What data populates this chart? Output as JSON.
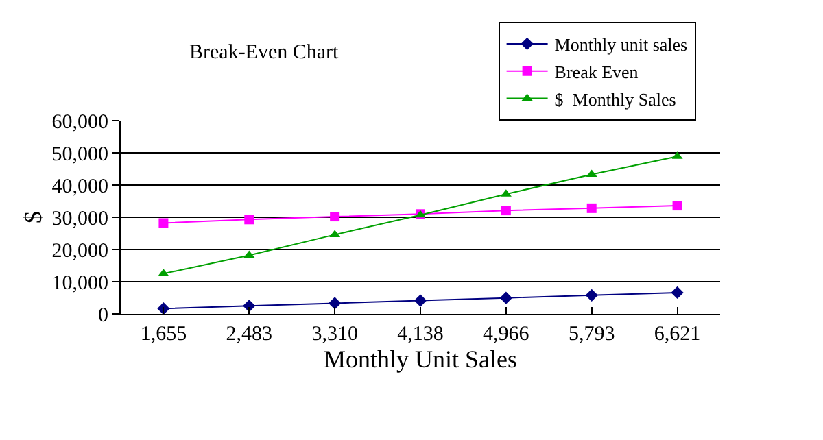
{
  "chart_data": {
    "type": "line",
    "title": "Break-Even Chart",
    "xlabel": "Monthly Unit Sales",
    "ylabel": "$",
    "categories": [
      "1,655",
      "2,483",
      "3,310",
      "4,138",
      "4,966",
      "5,793",
      "6,621"
    ],
    "series": [
      {
        "name": "Monthly unit sales",
        "color": "#000080",
        "marker": "diamond",
        "values": [
          1655,
          2483,
          3310,
          4138,
          4966,
          5793,
          6621
        ]
      },
      {
        "name": "Break Even",
        "color": "#ff00ff",
        "marker": "square",
        "values": [
          28200,
          29300,
          30200,
          31000,
          32100,
          32800,
          33600
        ]
      },
      {
        "name": "$  Monthly Sales",
        "color": "#00a000",
        "marker": "triangle",
        "values": [
          12500,
          18200,
          24600,
          30700,
          37200,
          43300,
          48900
        ]
      }
    ],
    "ylim": [
      0,
      60000
    ],
    "yticks": [
      {
        "value": 0,
        "label": "0"
      },
      {
        "value": 10000,
        "label": "10,000"
      },
      {
        "value": 20000,
        "label": "20,000"
      },
      {
        "value": 30000,
        "label": "30,000"
      },
      {
        "value": 40000,
        "label": "40,000"
      },
      {
        "value": 50000,
        "label": "50,000"
      },
      {
        "value": 60000,
        "label": "60,000"
      }
    ],
    "grid": "y",
    "legend": "top right",
    "line_style": "solid"
  }
}
